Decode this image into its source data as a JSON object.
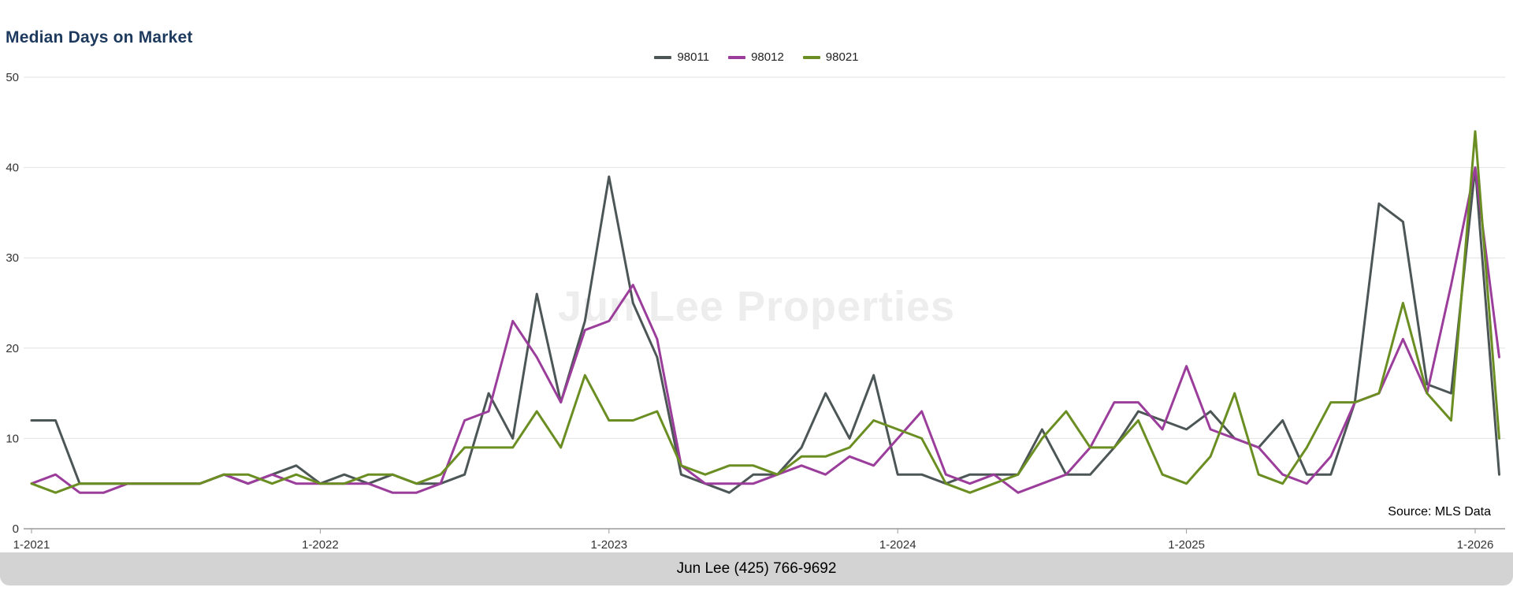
{
  "header": {
    "title": "Median Days on Market"
  },
  "footer": {
    "contact": "Jun Lee (425) 766-9692"
  },
  "colors": {
    "title": "#1d3a5e",
    "footer_bg": "#d3d3d3",
    "grid": "#e2e2e2",
    "axis": "#9a9a9a",
    "tick_text": "#333333",
    "watermark": "#ededed",
    "series_98011": "#4d5656",
    "series_98012": "#9b3d9b",
    "series_98021": "#6b8e23"
  },
  "chart_data": {
    "type": "line",
    "title": "Median Days on Market",
    "watermark": "Jun Lee Properties",
    "source": "Source: MLS Data",
    "ylim": [
      0,
      50
    ],
    "y_ticks": [
      0,
      10,
      20,
      30,
      40,
      50
    ],
    "grid": true,
    "legend_position": "top-center",
    "x_tick_labels": [
      "1-2021",
      "1-2022",
      "1-2023",
      "1-2024",
      "1-2025",
      "1-2026"
    ],
    "x": [
      "1-2021",
      "2-2021",
      "3-2021",
      "4-2021",
      "5-2021",
      "6-2021",
      "7-2021",
      "8-2021",
      "9-2021",
      "10-2021",
      "11-2021",
      "12-2021",
      "1-2022",
      "2-2022",
      "3-2022",
      "4-2022",
      "5-2022",
      "6-2022",
      "7-2022",
      "8-2022",
      "9-2022",
      "10-2022",
      "11-2022",
      "12-2022",
      "1-2023",
      "2-2023",
      "3-2023",
      "4-2023",
      "5-2023",
      "6-2023",
      "7-2023",
      "8-2023",
      "9-2023",
      "10-2023",
      "11-2023",
      "12-2023",
      "1-2024",
      "2-2024",
      "3-2024",
      "4-2024",
      "5-2024",
      "6-2024",
      "7-2024",
      "8-2024",
      "9-2024",
      "10-2024",
      "11-2024",
      "12-2024",
      "1-2025",
      "2-2025",
      "3-2025",
      "4-2025",
      "5-2025",
      "6-2025",
      "7-2025",
      "8-2025",
      "9-2025",
      "10-2025",
      "11-2025",
      "12-2025",
      "1-2026",
      "2-2026"
    ],
    "series": [
      {
        "name": "98011",
        "color": "#4d5656",
        "values": [
          12,
          12,
          5,
          5,
          5,
          5,
          5,
          5,
          6,
          5,
          6,
          7,
          5,
          6,
          5,
          6,
          5,
          5,
          6,
          15,
          10,
          26,
          14,
          23,
          39,
          25,
          19,
          6,
          5,
          4,
          6,
          6,
          9,
          15,
          10,
          17,
          6,
          6,
          5,
          6,
          6,
          6,
          11,
          6,
          6,
          9,
          13,
          12,
          11,
          13,
          10,
          9,
          12,
          6,
          6,
          14,
          36,
          34,
          16,
          15,
          40,
          6
        ]
      },
      {
        "name": "98012",
        "color": "#9b3d9b",
        "values": [
          5,
          6,
          4,
          4,
          5,
          5,
          5,
          5,
          6,
          5,
          6,
          5,
          5,
          5,
          5,
          4,
          4,
          5,
          12,
          13,
          23,
          19,
          14,
          22,
          23,
          27,
          21,
          7,
          5,
          5,
          5,
          6,
          7,
          6,
          8,
          7,
          10,
          13,
          6,
          5,
          6,
          4,
          5,
          6,
          9,
          14,
          14,
          11,
          18,
          11,
          10,
          9,
          6,
          5,
          8,
          14,
          15,
          21,
          15,
          27,
          40,
          19
        ]
      },
      {
        "name": "98021",
        "color": "#6b8e23",
        "values": [
          5,
          4,
          5,
          5,
          5,
          5,
          5,
          5,
          6,
          6,
          5,
          6,
          5,
          5,
          6,
          6,
          5,
          6,
          9,
          9,
          9,
          13,
          9,
          17,
          12,
          12,
          13,
          7,
          6,
          7,
          7,
          6,
          8,
          8,
          9,
          12,
          11,
          10,
          5,
          4,
          5,
          6,
          10,
          13,
          9,
          9,
          12,
          6,
          5,
          8,
          15,
          6,
          5,
          9,
          14,
          14,
          15,
          25,
          15,
          12,
          44,
          10
        ]
      }
    ]
  }
}
